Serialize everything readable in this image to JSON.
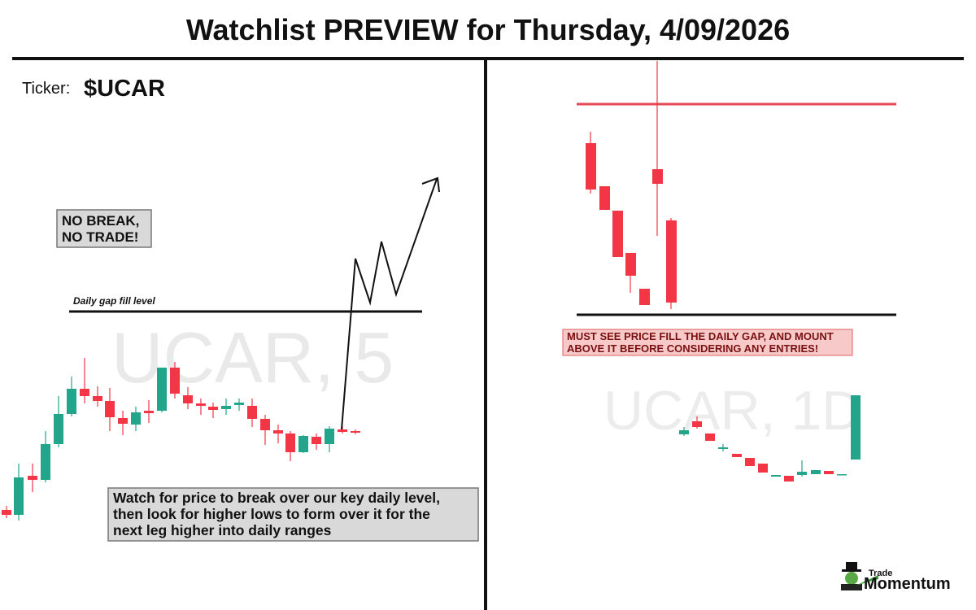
{
  "header": {
    "title": "Watchlist PREVIEW for Thursday, 4/09/2026"
  },
  "left_panel": {
    "ticker_label": "Ticker:",
    "ticker": "$UCAR",
    "watermark": "UCAR, 5",
    "callout_lines": [
      "NO BREAK,",
      "NO TRADE!"
    ],
    "level_label": "Daily gap fill level",
    "note_lines": [
      "Watch for price to break over our key daily level,",
      "then look for higher lows to form over it for the",
      "next leg higher into daily ranges"
    ]
  },
  "right_panel": {
    "watermark": "UCAR, 1D",
    "note_lines": [
      "MUST SEE PRICE FILL THE DAILY GAP, AND MOUNT",
      "ABOVE IT BEFORE CONSIDERING ANY ENTRIES!"
    ]
  },
  "logo": {
    "small": "Trade",
    "big": "Momentum"
  }
}
